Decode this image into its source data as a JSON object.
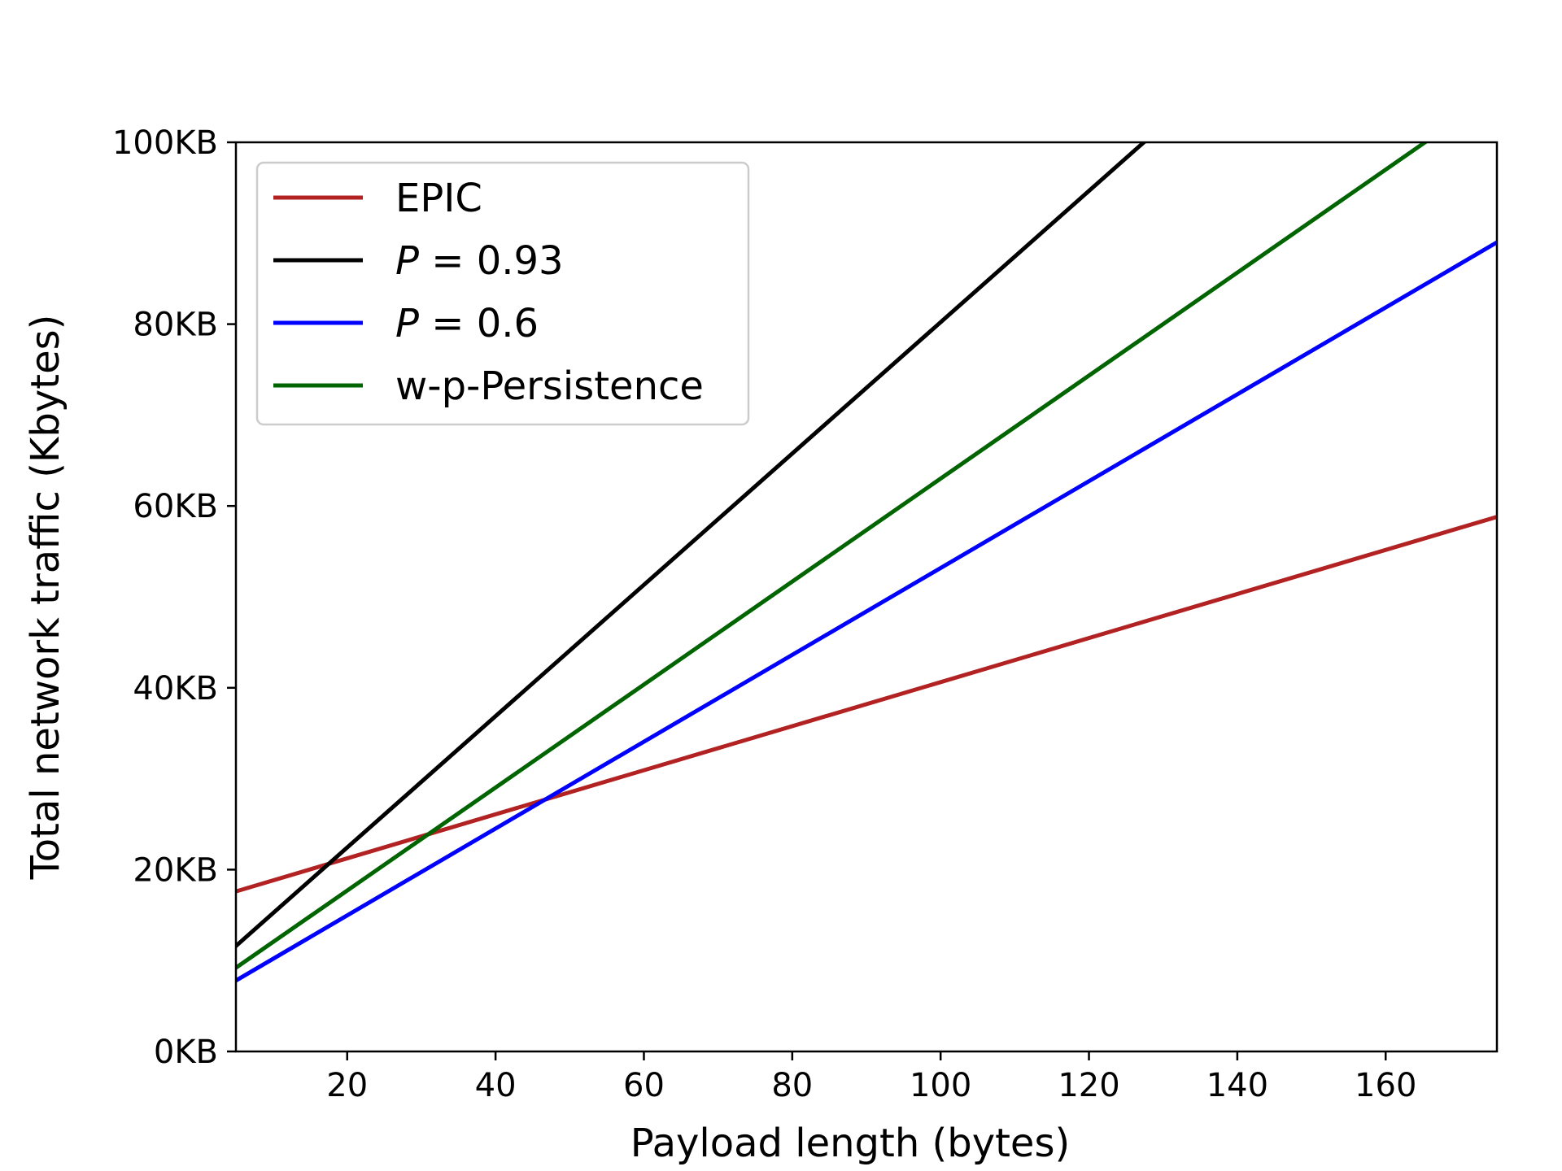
{
  "chart_data": {
    "type": "line",
    "title": "",
    "xlabel": "Payload length (bytes)",
    "ylabel": "Total network traffic (Kbytes)",
    "xlim": [
      5,
      175
    ],
    "ylim": [
      0,
      100
    ],
    "x_ticks": [
      20,
      40,
      60,
      80,
      100,
      120,
      140,
      160
    ],
    "x_tick_labels": [
      "20",
      "40",
      "60",
      "80",
      "100",
      "120",
      "140",
      "160"
    ],
    "y_ticks": [
      0,
      20,
      40,
      60,
      80,
      100
    ],
    "y_tick_labels": [
      "0KB",
      "20KB",
      "40KB",
      "60KB",
      "80KB",
      "100KB"
    ],
    "grid": false,
    "legend_position": "upper-left",
    "series": [
      {
        "name": "EPIC",
        "legend_prefix": "",
        "legend_value": "",
        "color": "#b22222",
        "x": [
          5,
          175
        ],
        "y": [
          17.6,
          58.8
        ]
      },
      {
        "name": "P = 0.93",
        "legend_prefix": "P",
        "legend_value": " = 0.93",
        "color": "#000000",
        "x": [
          5,
          127.4
        ],
        "y": [
          11.6,
          100
        ]
      },
      {
        "name": "P = 0.6",
        "legend_prefix": "P",
        "legend_value": " = 0.6",
        "color": "#0000ff",
        "x": [
          5,
          175
        ],
        "y": [
          7.8,
          89.0
        ]
      },
      {
        "name": "w-p-Persistence",
        "legend_prefix": "",
        "legend_value": "",
        "color": "#006400",
        "x": [
          5,
          165.3
        ],
        "y": [
          9.2,
          100
        ]
      }
    ]
  }
}
